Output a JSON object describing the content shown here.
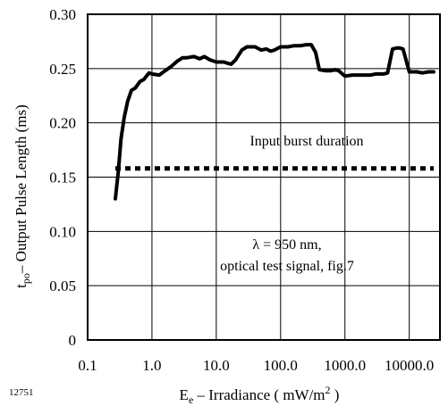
{
  "chart_data": {
    "type": "line",
    "xscale": "log",
    "xlim": [
      0.1,
      30000
    ],
    "ylim": [
      0,
      0.3
    ],
    "grid": true,
    "xlabel": {
      "main": "E",
      "sub": "e",
      "rest": " – Irradiance ( mW/m",
      "sup": "2",
      "end": " )"
    },
    "ylabel": {
      "main": "t",
      "sub": "po",
      "rest": "– Output Pulse Length (ms)"
    },
    "x_ticks": [
      {
        "value": 0.1,
        "label": "0.1"
      },
      {
        "value": 1,
        "label": "1.0"
      },
      {
        "value": 10,
        "label": "10.0"
      },
      {
        "value": 100,
        "label": "100.0"
      },
      {
        "value": 1000,
        "label": "1000.0"
      },
      {
        "value": 10000,
        "label": "10000.0"
      }
    ],
    "y_ticks": [
      {
        "value": 0,
        "label": "0"
      },
      {
        "value": 0.05,
        "label": "0.05"
      },
      {
        "value": 0.1,
        "label": "0.10"
      },
      {
        "value": 0.15,
        "label": "0.15"
      },
      {
        "value": 0.2,
        "label": "0.20"
      },
      {
        "value": 0.25,
        "label": "0.25"
      },
      {
        "value": 0.3,
        "label": "0.30"
      }
    ],
    "series": [
      {
        "style": "solid",
        "x": [
          0.27,
          0.3,
          0.33,
          0.37,
          0.42,
          0.48,
          0.55,
          0.65,
          0.75,
          0.9,
          1.0,
          1.3,
          1.6,
          2.0,
          2.5,
          3.0,
          3.5,
          4.5,
          5.5,
          6.5,
          8.0,
          10,
          13,
          17,
          20,
          25,
          30,
          40,
          50,
          60,
          70,
          80,
          100,
          130,
          160,
          200,
          250,
          300,
          350,
          400,
          500,
          600,
          700,
          800,
          1000,
          1300,
          1600,
          2000,
          2500,
          3000,
          4000,
          4600,
          5500,
          6500,
          7000,
          8000,
          10000,
          13000,
          16000,
          20000,
          24000
        ],
        "y": [
          0.13,
          0.155,
          0.185,
          0.205,
          0.22,
          0.23,
          0.232,
          0.238,
          0.24,
          0.246,
          0.245,
          0.244,
          0.248,
          0.252,
          0.257,
          0.26,
          0.26,
          0.261,
          0.259,
          0.261,
          0.258,
          0.256,
          0.256,
          0.254,
          0.258,
          0.267,
          0.27,
          0.27,
          0.267,
          0.268,
          0.266,
          0.267,
          0.27,
          0.27,
          0.271,
          0.271,
          0.272,
          0.272,
          0.265,
          0.249,
          0.248,
          0.248,
          0.249,
          0.248,
          0.243,
          0.244,
          0.244,
          0.244,
          0.244,
          0.245,
          0.245,
          0.246,
          0.268,
          0.269,
          0.269,
          0.268,
          0.247,
          0.247,
          0.246,
          0.247,
          0.247
        ]
      },
      {
        "style": "dotted",
        "x": [
          0.27,
          24000
        ],
        "y": [
          0.158,
          0.158
        ]
      }
    ],
    "annotations": {
      "burst": "Input burst duration",
      "lambda": "λ = 950 nm,",
      "signal": "optical test signal, fig.7"
    },
    "figure_number": "12751"
  }
}
